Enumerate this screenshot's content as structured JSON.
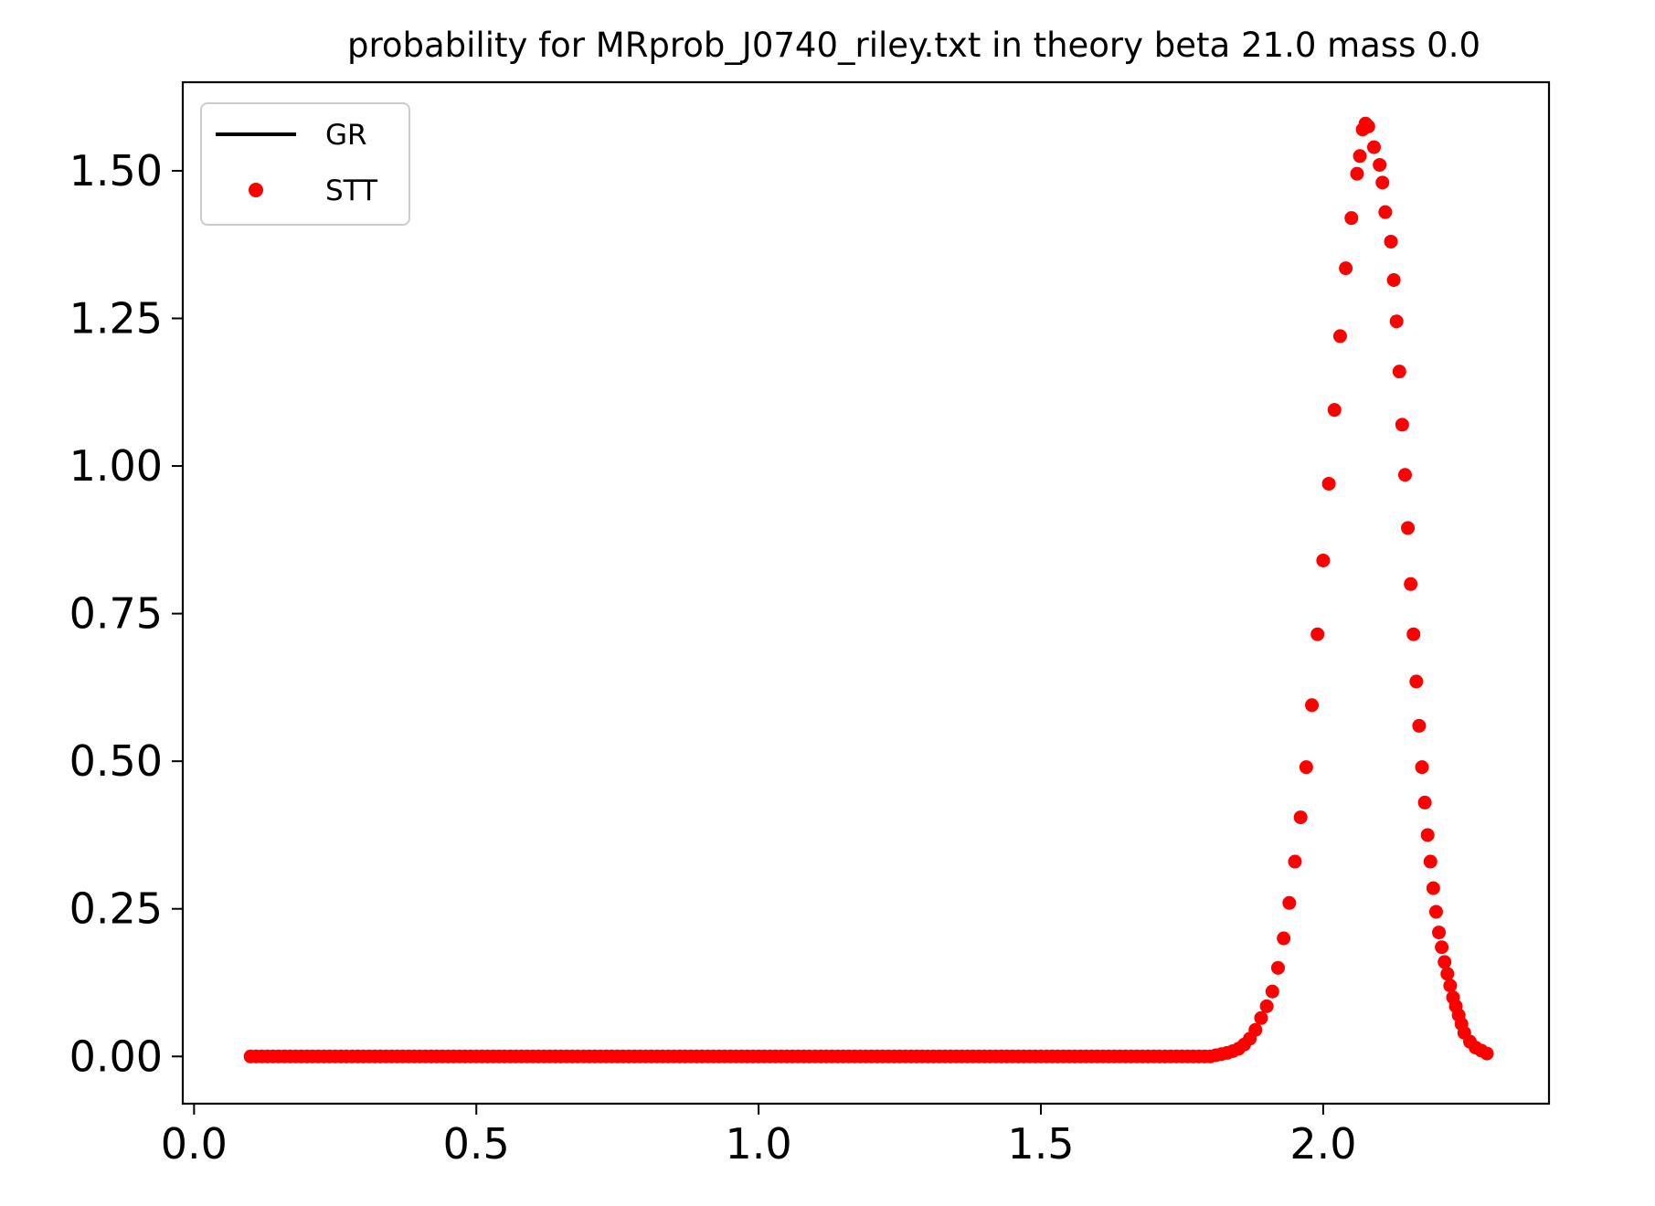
{
  "chart_data": {
    "type": "scatter",
    "title": "probability for MRprob_J0740_riley.txt in theory beta 21.0 mass 0.0",
    "xlabel": "",
    "ylabel": "",
    "xlim": [
      -0.02,
      2.4
    ],
    "ylim": [
      -0.08,
      1.65
    ],
    "xticks": [
      0.0,
      0.5,
      1.0,
      1.5,
      2.0
    ],
    "xtick_labels": [
      "0.0",
      "0.5",
      "1.0",
      "1.5",
      "2.0"
    ],
    "yticks": [
      0.0,
      0.25,
      0.5,
      0.75,
      1.0,
      1.25,
      1.5
    ],
    "ytick_labels": [
      "0.00",
      "0.25",
      "0.50",
      "0.75",
      "1.00",
      "1.25",
      "1.50"
    ],
    "grid": false,
    "legend": {
      "placement": "upper-left",
      "entries": [
        {
          "label": "GR",
          "style": "line",
          "color": "#000000"
        },
        {
          "label": "STT",
          "style": "marker",
          "color": "#ff0000"
        }
      ]
    },
    "series": [
      {
        "name": "GR",
        "style": "line",
        "color": "#000000",
        "x": [
          0.09,
          0.11
        ],
        "y": [
          0.0,
          0.0
        ]
      },
      {
        "name": "STT",
        "style": "scatter",
        "color": "#ff0000",
        "flat_range": {
          "x_start": 0.1,
          "x_end": 1.8,
          "step": 0.01,
          "y": 0.0
        },
        "x": [
          1.81,
          1.82,
          1.83,
          1.84,
          1.85,
          1.86,
          1.87,
          1.88,
          1.89,
          1.9,
          1.91,
          1.92,
          1.93,
          1.94,
          1.95,
          1.96,
          1.97,
          1.98,
          1.99,
          2.0,
          2.01,
          2.02,
          2.03,
          2.04,
          2.05,
          2.06,
          2.065,
          2.07,
          2.075,
          2.08,
          2.09,
          2.1,
          2.105,
          2.11,
          2.12,
          2.125,
          2.13,
          2.135,
          2.14,
          2.145,
          2.15,
          2.155,
          2.16,
          2.165,
          2.17,
          2.175,
          2.18,
          2.185,
          2.19,
          2.195,
          2.2,
          2.205,
          2.21,
          2.215,
          2.22,
          2.225,
          2.23,
          2.235,
          2.24,
          2.245,
          2.25,
          2.26,
          2.27,
          2.28,
          2.29
        ],
        "y": [
          0.002,
          0.004,
          0.006,
          0.009,
          0.013,
          0.02,
          0.03,
          0.045,
          0.065,
          0.085,
          0.11,
          0.15,
          0.2,
          0.26,
          0.33,
          0.405,
          0.49,
          0.595,
          0.715,
          0.84,
          0.97,
          1.095,
          1.22,
          1.335,
          1.42,
          1.495,
          1.525,
          1.57,
          1.58,
          1.575,
          1.54,
          1.51,
          1.48,
          1.43,
          1.38,
          1.315,
          1.245,
          1.16,
          1.07,
          0.985,
          0.895,
          0.8,
          0.715,
          0.635,
          0.56,
          0.49,
          0.43,
          0.375,
          0.33,
          0.285,
          0.245,
          0.21,
          0.185,
          0.16,
          0.14,
          0.12,
          0.1,
          0.085,
          0.07,
          0.055,
          0.04,
          0.025,
          0.015,
          0.01,
          0.005
        ]
      }
    ]
  }
}
